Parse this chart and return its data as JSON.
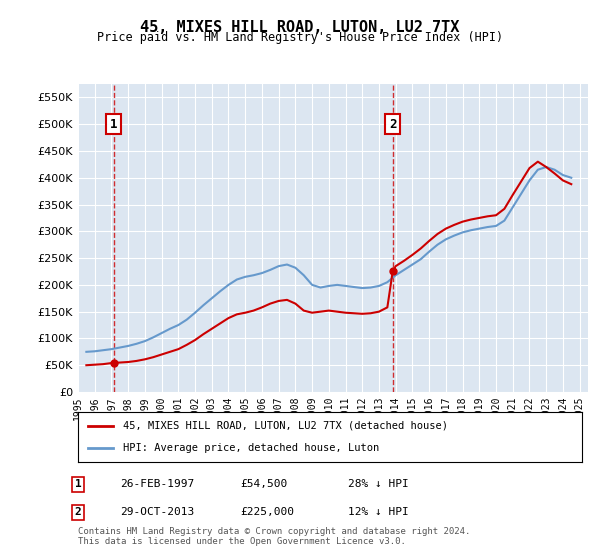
{
  "title": "45, MIXES HILL ROAD, LUTON, LU2 7TX",
  "subtitle": "Price paid vs. HM Land Registry's House Price Index (HPI)",
  "legend_line1": "45, MIXES HILL ROAD, LUTON, LU2 7TX (detached house)",
  "legend_line2": "HPI: Average price, detached house, Luton",
  "footnote": "Contains HM Land Registry data © Crown copyright and database right 2024.\nThis data is licensed under the Open Government Licence v3.0.",
  "transactions": [
    {
      "label": "1",
      "date": "26-FEB-1997",
      "price": 54500,
      "note": "28% ↓ HPI",
      "x_year": 1997.15
    },
    {
      "label": "2",
      "date": "29-OCT-2013",
      "price": 225000,
      "note": "12% ↓ HPI",
      "x_year": 2013.82
    }
  ],
  "ylim": [
    0,
    575000
  ],
  "yticks": [
    0,
    50000,
    100000,
    150000,
    200000,
    250000,
    300000,
    350000,
    400000,
    450000,
    500000,
    550000
  ],
  "xlim_start": 1995.0,
  "xlim_end": 2025.5,
  "xtick_years": [
    1995,
    1996,
    1997,
    1998,
    1999,
    2000,
    2001,
    2002,
    2003,
    2004,
    2005,
    2006,
    2007,
    2008,
    2009,
    2010,
    2011,
    2012,
    2013,
    2014,
    2015,
    2016,
    2017,
    2018,
    2019,
    2020,
    2021,
    2022,
    2023,
    2024,
    2025
  ],
  "background_color": "#dce6f1",
  "plot_bg_color": "#dce6f1",
  "grid_color": "#ffffff",
  "red_line_color": "#cc0000",
  "blue_line_color": "#6699cc",
  "dashed_line_color": "#cc0000",
  "hpi_data": {
    "years": [
      1995.5,
      1996.0,
      1996.5,
      1997.0,
      1997.5,
      1998.0,
      1998.5,
      1999.0,
      1999.5,
      2000.0,
      2000.5,
      2001.0,
      2001.5,
      2002.0,
      2002.5,
      2003.0,
      2003.5,
      2004.0,
      2004.5,
      2005.0,
      2005.5,
      2006.0,
      2006.5,
      2007.0,
      2007.5,
      2008.0,
      2008.5,
      2009.0,
      2009.5,
      2010.0,
      2010.5,
      2011.0,
      2011.5,
      2012.0,
      2012.5,
      2013.0,
      2013.5,
      2014.0,
      2014.5,
      2015.0,
      2015.5,
      2016.0,
      2016.5,
      2017.0,
      2017.5,
      2018.0,
      2018.5,
      2019.0,
      2019.5,
      2020.0,
      2020.5,
      2021.0,
      2021.5,
      2022.0,
      2022.5,
      2023.0,
      2023.5,
      2024.0,
      2024.5
    ],
    "values": [
      75000,
      76000,
      78000,
      80000,
      83000,
      86000,
      90000,
      95000,
      102000,
      110000,
      118000,
      125000,
      135000,
      148000,
      162000,
      175000,
      188000,
      200000,
      210000,
      215000,
      218000,
      222000,
      228000,
      235000,
      238000,
      232000,
      218000,
      200000,
      195000,
      198000,
      200000,
      198000,
      196000,
      194000,
      195000,
      198000,
      205000,
      218000,
      228000,
      238000,
      248000,
      262000,
      275000,
      285000,
      292000,
      298000,
      302000,
      305000,
      308000,
      310000,
      320000,
      345000,
      370000,
      395000,
      415000,
      420000,
      415000,
      405000,
      400000
    ]
  },
  "price_data": {
    "years": [
      1995.5,
      1996.0,
      1996.5,
      1997.0,
      1997.2,
      1997.5,
      1998.0,
      1998.5,
      1999.0,
      1999.5,
      2000.0,
      2000.5,
      2001.0,
      2001.5,
      2002.0,
      2002.5,
      2003.0,
      2003.5,
      2004.0,
      2004.5,
      2005.0,
      2005.5,
      2006.0,
      2006.5,
      2007.0,
      2007.5,
      2008.0,
      2008.5,
      2009.0,
      2009.5,
      2010.0,
      2010.5,
      2011.0,
      2011.5,
      2012.0,
      2012.5,
      2013.0,
      2013.5,
      2013.82,
      2014.0,
      2014.5,
      2015.0,
      2015.5,
      2016.0,
      2016.5,
      2017.0,
      2017.5,
      2018.0,
      2018.5,
      2019.0,
      2019.5,
      2020.0,
      2020.5,
      2021.0,
      2021.5,
      2022.0,
      2022.5,
      2023.0,
      2023.5,
      2024.0,
      2024.5
    ],
    "values": [
      50000,
      51000,
      52000,
      54000,
      54500,
      55000,
      56000,
      58000,
      61000,
      65000,
      70000,
      75000,
      80000,
      88000,
      97000,
      108000,
      118000,
      128000,
      138000,
      145000,
      148000,
      152000,
      158000,
      165000,
      170000,
      172000,
      165000,
      152000,
      148000,
      150000,
      152000,
      150000,
      148000,
      147000,
      146000,
      147000,
      150000,
      158000,
      225000,
      235000,
      245000,
      256000,
      268000,
      282000,
      295000,
      305000,
      312000,
      318000,
      322000,
      325000,
      328000,
      330000,
      342000,
      368000,
      393000,
      418000,
      430000,
      420000,
      408000,
      395000,
      388000
    ]
  }
}
